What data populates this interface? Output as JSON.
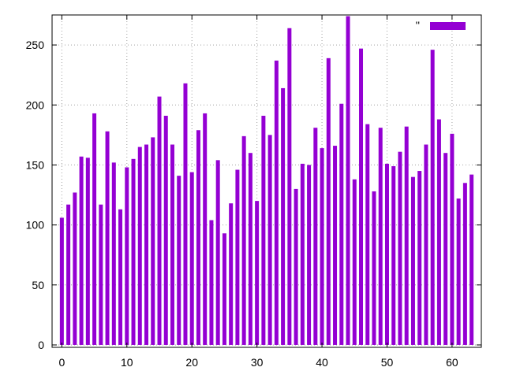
{
  "chart_data": {
    "type": "bar",
    "x": [
      0,
      1,
      2,
      3,
      4,
      5,
      6,
      7,
      8,
      9,
      10,
      11,
      12,
      13,
      14,
      15,
      16,
      17,
      18,
      19,
      20,
      21,
      22,
      23,
      24,
      25,
      26,
      27,
      28,
      29,
      30,
      31,
      32,
      33,
      34,
      35,
      36,
      37,
      38,
      39,
      40,
      41,
      42,
      43,
      44,
      45,
      46,
      47,
      48,
      49,
      50,
      51,
      52,
      53,
      54,
      55,
      56,
      57,
      58,
      59,
      60,
      61,
      62,
      63
    ],
    "values": [
      106,
      117,
      127,
      157,
      156,
      193,
      117,
      178,
      152,
      113,
      148,
      155,
      165,
      167,
      173,
      207,
      191,
      167,
      141,
      218,
      144,
      179,
      193,
      104,
      154,
      93,
      118,
      146,
      174,
      160,
      120,
      191,
      175,
      237,
      214,
      264,
      130,
      151,
      150,
      181,
      164,
      239,
      166,
      201,
      274,
      138,
      247,
      184,
      128,
      181,
      151,
      149,
      161,
      182,
      140,
      145,
      167,
      246,
      188,
      160,
      176,
      122,
      135,
      142
    ],
    "series": [
      {
        "name": "''",
        "color": "#9400d3"
      }
    ],
    "legend_label": "''",
    "legend_position": "top-right",
    "title": "",
    "xlabel": "",
    "ylabel": "",
    "xlim": [
      -1.5,
      64.5
    ],
    "ylim": [
      -2,
      275
    ],
    "x_ticks": [
      0,
      10,
      20,
      30,
      40,
      50,
      60
    ],
    "y_ticks": [
      0,
      50,
      100,
      150,
      200,
      250
    ],
    "grid": true,
    "bar_color": "#9400d3"
  }
}
